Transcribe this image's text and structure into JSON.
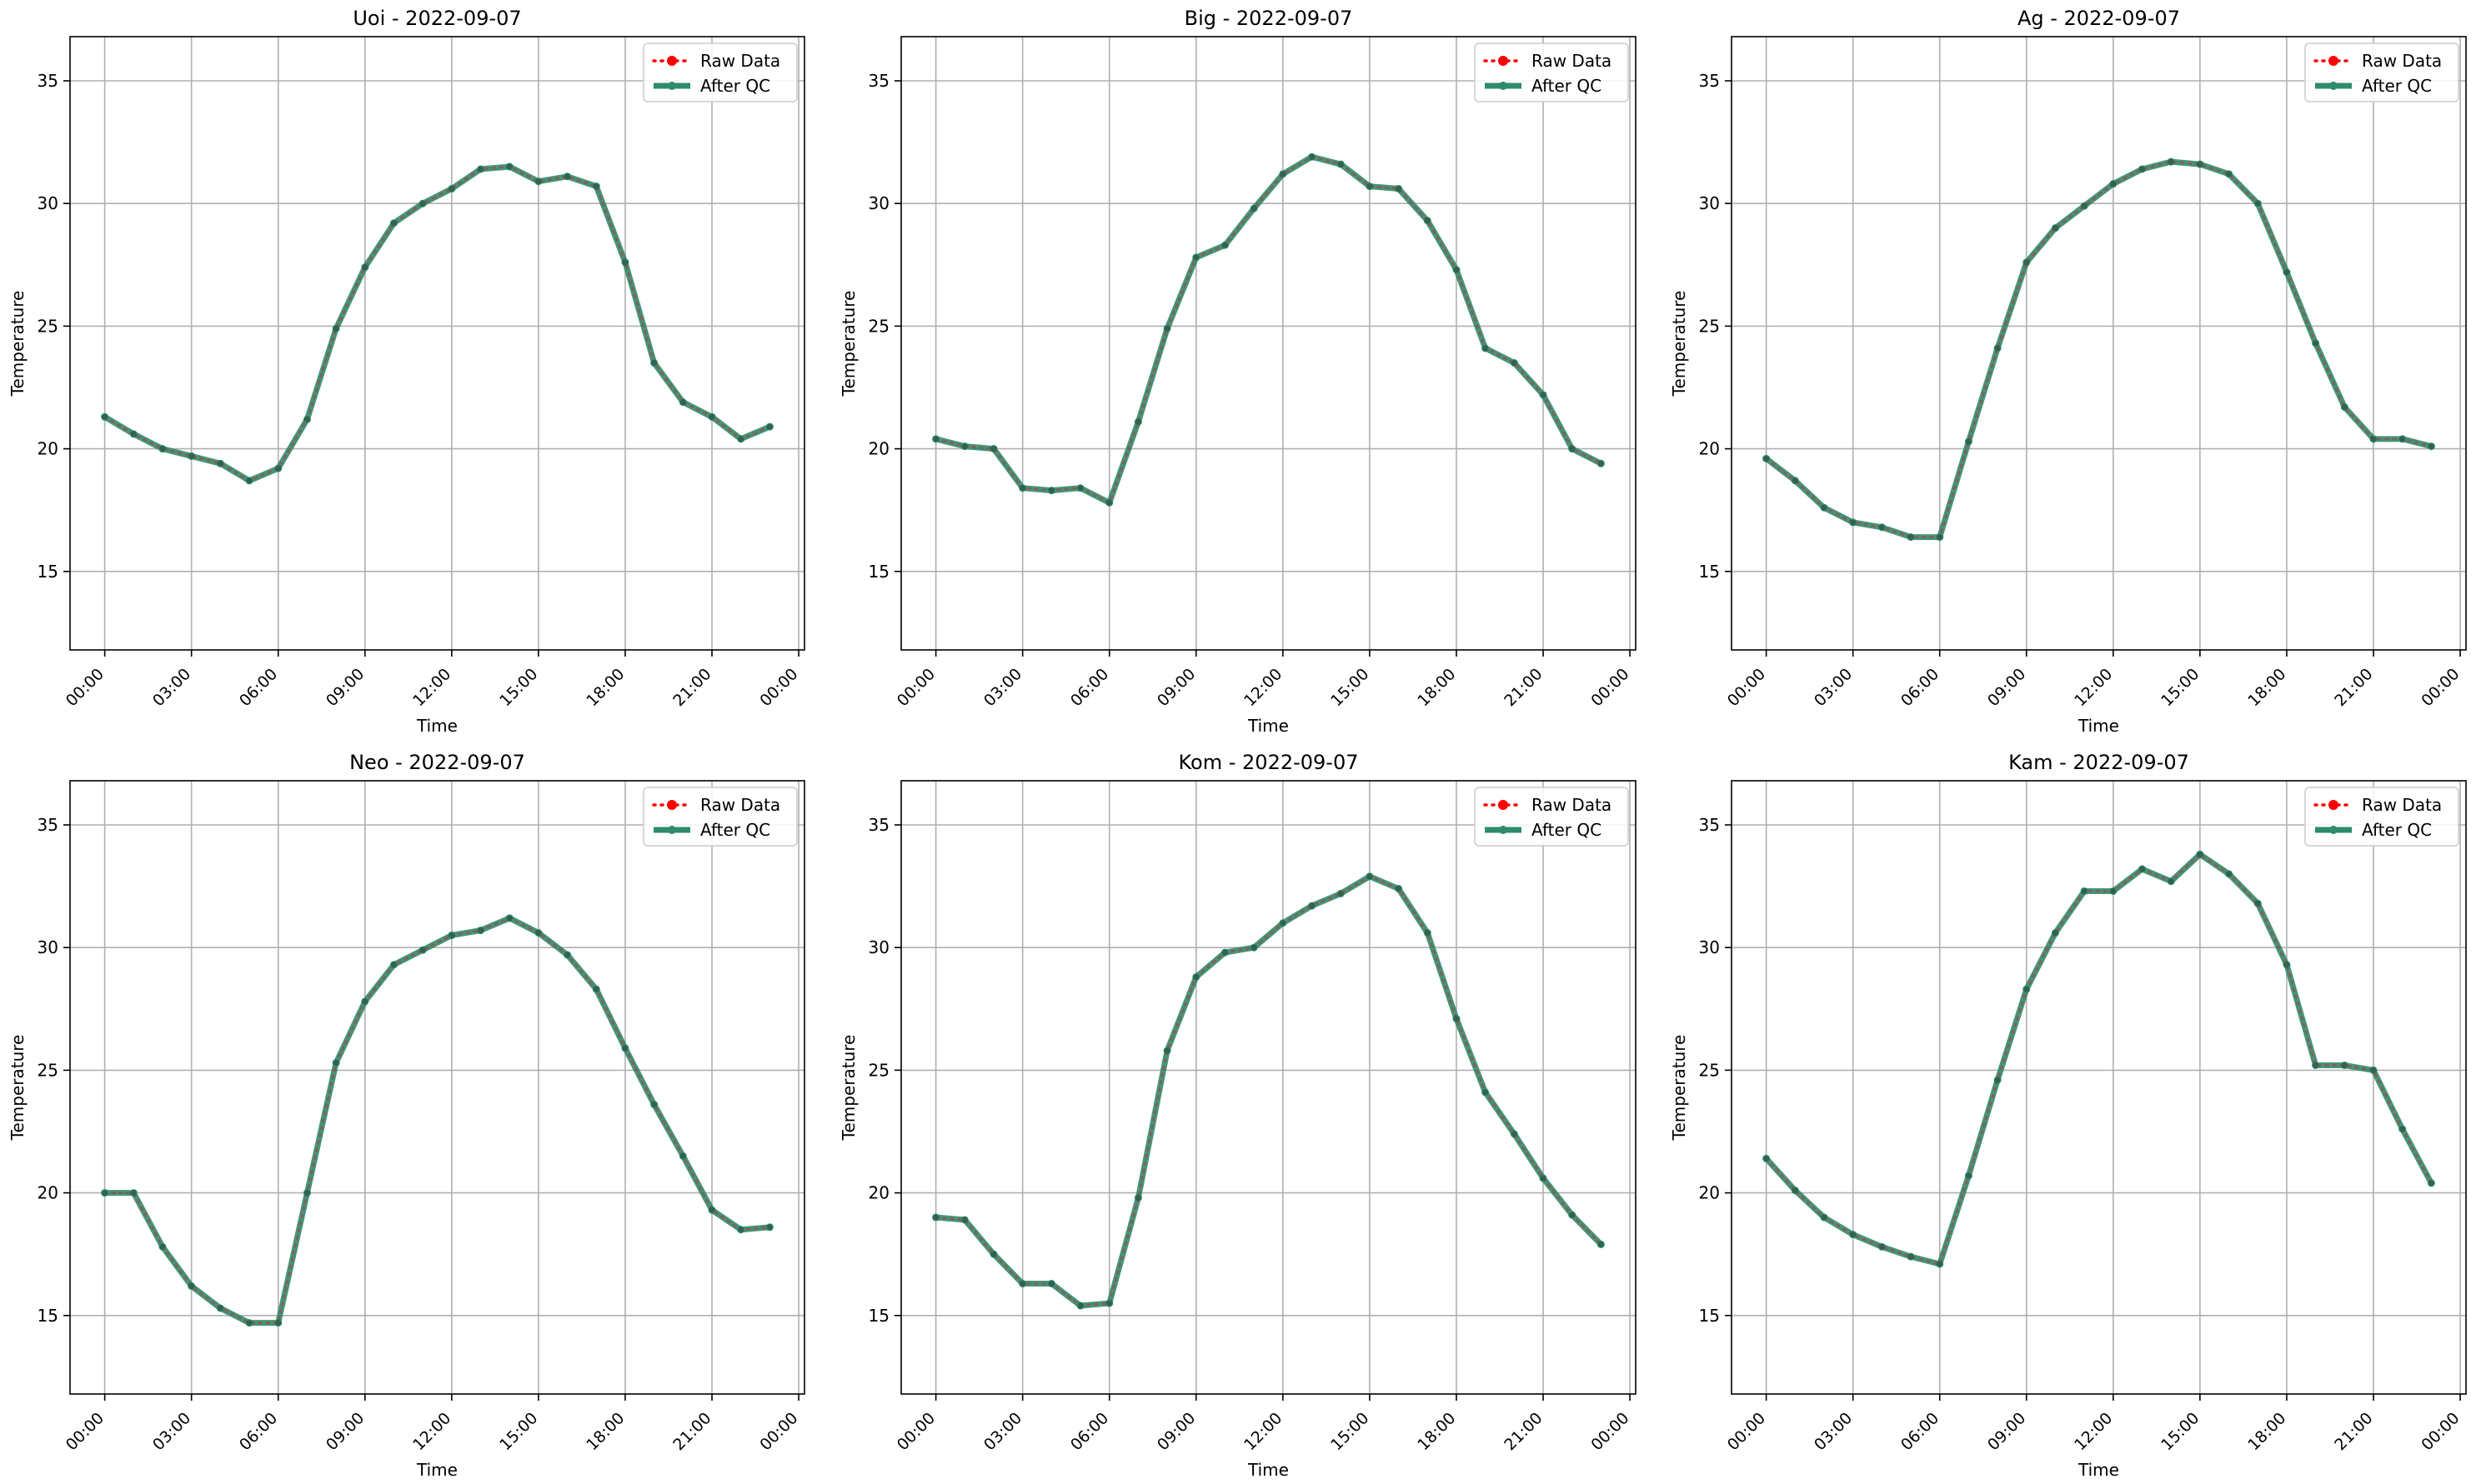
{
  "legend": {
    "raw_label": "Raw Data",
    "qc_label": "After QC",
    "placement": "upper right"
  },
  "colors": {
    "raw": "#ff0000",
    "qc": "#2e8b6e",
    "grid": "#b0b0b0",
    "axis": "#000000"
  },
  "axes": {
    "x_tick_labels": [
      "00:00",
      "03:00",
      "06:00",
      "09:00",
      "12:00",
      "15:00",
      "18:00",
      "21:00",
      "00:00"
    ],
    "y_ticks": [
      15,
      20,
      25,
      30,
      35
    ]
  },
  "chart_data": [
    {
      "type": "line",
      "title": "Uoi - 2022-09-07",
      "xlabel": "Time",
      "ylabel": "Temperature",
      "xlim": [
        "2022-09-06 22:48",
        "2022-09-08 00:12"
      ],
      "ylim": [
        11.8,
        36.8
      ],
      "grid": true,
      "x": [
        "00:00",
        "01:00",
        "02:00",
        "03:00",
        "04:00",
        "05:00",
        "06:00",
        "07:00",
        "08:00",
        "09:00",
        "10:00",
        "11:00",
        "12:00",
        "13:00",
        "14:00",
        "15:00",
        "16:00",
        "17:00",
        "18:00",
        "19:00",
        "20:00",
        "21:00",
        "22:00",
        "23:00"
      ],
      "series": [
        {
          "name": "Raw Data",
          "values": [
            21.3,
            20.6,
            20.0,
            19.7,
            19.4,
            18.7,
            19.2,
            21.2,
            24.9,
            27.4,
            29.2,
            30.0,
            30.6,
            31.4,
            31.5,
            30.9,
            31.1,
            30.7,
            27.6,
            23.5,
            21.9,
            21.3,
            20.4,
            20.9
          ]
        },
        {
          "name": "After QC",
          "values": [
            21.3,
            20.6,
            20.0,
            19.7,
            19.4,
            18.7,
            19.2,
            21.2,
            24.9,
            27.4,
            29.2,
            30.0,
            30.6,
            31.4,
            31.5,
            30.9,
            31.1,
            30.7,
            27.6,
            23.5,
            21.9,
            21.3,
            20.4,
            20.9
          ]
        }
      ]
    },
    {
      "type": "line",
      "title": "Big - 2022-09-07",
      "xlabel": "Time",
      "ylabel": "Temperature",
      "xlim": [
        "2022-09-06 22:48",
        "2022-09-08 00:12"
      ],
      "ylim": [
        11.8,
        36.8
      ],
      "grid": true,
      "x": [
        "00:00",
        "01:00",
        "02:00",
        "03:00",
        "04:00",
        "05:00",
        "06:00",
        "07:00",
        "08:00",
        "09:00",
        "10:00",
        "11:00",
        "12:00",
        "13:00",
        "14:00",
        "15:00",
        "16:00",
        "17:00",
        "18:00",
        "19:00",
        "20:00",
        "21:00",
        "22:00",
        "23:00"
      ],
      "series": [
        {
          "name": "Raw Data",
          "values": [
            20.4,
            20.1,
            20.0,
            18.4,
            18.3,
            18.4,
            17.8,
            21.1,
            24.9,
            27.8,
            28.3,
            29.8,
            31.2,
            31.9,
            31.6,
            30.7,
            30.6,
            29.3,
            27.3,
            24.1,
            23.5,
            22.2,
            20.0,
            19.4
          ]
        },
        {
          "name": "After QC",
          "values": [
            20.4,
            20.1,
            20.0,
            18.4,
            18.3,
            18.4,
            17.8,
            21.1,
            24.9,
            27.8,
            28.3,
            29.8,
            31.2,
            31.9,
            31.6,
            30.7,
            30.6,
            29.3,
            27.3,
            24.1,
            23.5,
            22.2,
            20.0,
            19.4
          ]
        }
      ]
    },
    {
      "type": "line",
      "title": "Ag - 2022-09-07",
      "xlabel": "Time",
      "ylabel": "Temperature",
      "xlim": [
        "2022-09-06 22:48",
        "2022-09-08 00:12"
      ],
      "ylim": [
        11.8,
        36.8
      ],
      "grid": true,
      "x": [
        "00:00",
        "01:00",
        "02:00",
        "03:00",
        "04:00",
        "05:00",
        "06:00",
        "07:00",
        "08:00",
        "09:00",
        "10:00",
        "11:00",
        "12:00",
        "13:00",
        "14:00",
        "15:00",
        "16:00",
        "17:00",
        "18:00",
        "19:00",
        "20:00",
        "21:00",
        "22:00",
        "23:00"
      ],
      "series": [
        {
          "name": "Raw Data",
          "values": [
            19.6,
            18.7,
            17.6,
            17.0,
            16.8,
            16.4,
            16.4,
            20.3,
            24.1,
            27.6,
            29.0,
            29.9,
            30.8,
            31.4,
            31.7,
            31.6,
            31.2,
            30.0,
            27.2,
            24.3,
            21.7,
            20.4,
            20.4,
            20.1
          ]
        },
        {
          "name": "After QC",
          "values": [
            19.6,
            18.7,
            17.6,
            17.0,
            16.8,
            16.4,
            16.4,
            20.3,
            24.1,
            27.6,
            29.0,
            29.9,
            30.8,
            31.4,
            31.7,
            31.6,
            31.2,
            30.0,
            27.2,
            24.3,
            21.7,
            20.4,
            20.4,
            20.1
          ]
        }
      ]
    },
    {
      "type": "line",
      "title": "Neo - 2022-09-07",
      "xlabel": "Time",
      "ylabel": "Temperature",
      "xlim": [
        "2022-09-06 22:48",
        "2022-09-08 00:12"
      ],
      "ylim": [
        11.8,
        36.8
      ],
      "grid": true,
      "x": [
        "00:00",
        "01:00",
        "02:00",
        "03:00",
        "04:00",
        "05:00",
        "06:00",
        "07:00",
        "08:00",
        "09:00",
        "10:00",
        "11:00",
        "12:00",
        "13:00",
        "14:00",
        "15:00",
        "16:00",
        "17:00",
        "18:00",
        "19:00",
        "20:00",
        "21:00",
        "22:00",
        "23:00"
      ],
      "series": [
        {
          "name": "Raw Data",
          "values": [
            20.0,
            20.0,
            17.8,
            16.2,
            15.3,
            14.7,
            14.7,
            20.0,
            25.3,
            27.8,
            29.3,
            29.9,
            30.5,
            30.7,
            31.2,
            30.6,
            29.7,
            28.3,
            25.9,
            23.6,
            21.5,
            19.3,
            18.5,
            18.6
          ]
        },
        {
          "name": "After QC",
          "values": [
            20.0,
            20.0,
            17.8,
            16.2,
            15.3,
            14.7,
            14.7,
            20.0,
            25.3,
            27.8,
            29.3,
            29.9,
            30.5,
            30.7,
            31.2,
            30.6,
            29.7,
            28.3,
            25.9,
            23.6,
            21.5,
            19.3,
            18.5,
            18.6
          ]
        }
      ]
    },
    {
      "type": "line",
      "title": "Kom - 2022-09-07",
      "xlabel": "Time",
      "ylabel": "Temperature",
      "xlim": [
        "2022-09-06 22:48",
        "2022-09-08 00:12"
      ],
      "ylim": [
        11.8,
        36.8
      ],
      "grid": true,
      "x": [
        "00:00",
        "01:00",
        "02:00",
        "03:00",
        "04:00",
        "05:00",
        "06:00",
        "07:00",
        "08:00",
        "09:00",
        "10:00",
        "11:00",
        "12:00",
        "13:00",
        "14:00",
        "15:00",
        "16:00",
        "17:00",
        "18:00",
        "19:00",
        "20:00",
        "21:00",
        "22:00",
        "23:00"
      ],
      "series": [
        {
          "name": "Raw Data",
          "values": [
            19.0,
            18.9,
            17.5,
            16.3,
            16.3,
            15.4,
            15.5,
            19.8,
            25.8,
            28.8,
            29.8,
            30.0,
            31.0,
            31.7,
            32.2,
            32.9,
            32.4,
            30.6,
            27.1,
            24.1,
            22.4,
            20.6,
            19.1,
            17.9
          ]
        },
        {
          "name": "After QC",
          "values": [
            19.0,
            18.9,
            17.5,
            16.3,
            16.3,
            15.4,
            15.5,
            19.8,
            25.8,
            28.8,
            29.8,
            30.0,
            31.0,
            31.7,
            32.2,
            32.9,
            32.4,
            30.6,
            27.1,
            24.1,
            22.4,
            20.6,
            19.1,
            17.9
          ]
        }
      ]
    },
    {
      "type": "line",
      "title": "Kam - 2022-09-07",
      "xlabel": "Time",
      "ylabel": "Temperature",
      "xlim": [
        "2022-09-06 22:48",
        "2022-09-08 00:12"
      ],
      "ylim": [
        11.8,
        36.8
      ],
      "grid": true,
      "x": [
        "00:00",
        "01:00",
        "02:00",
        "03:00",
        "04:00",
        "05:00",
        "06:00",
        "07:00",
        "08:00",
        "09:00",
        "10:00",
        "11:00",
        "12:00",
        "13:00",
        "14:00",
        "15:00",
        "16:00",
        "17:00",
        "18:00",
        "19:00",
        "20:00",
        "21:00",
        "22:00",
        "23:00"
      ],
      "series": [
        {
          "name": "Raw Data",
          "values": [
            21.4,
            20.1,
            19.0,
            18.3,
            17.8,
            17.4,
            17.1,
            20.7,
            24.6,
            28.3,
            30.6,
            32.3,
            32.3,
            33.2,
            32.7,
            33.8,
            33.0,
            31.8,
            29.3,
            25.2,
            25.2,
            25.0,
            22.6,
            20.4
          ]
        },
        {
          "name": "After QC",
          "values": [
            21.4,
            20.1,
            19.0,
            18.3,
            17.8,
            17.4,
            17.1,
            20.7,
            24.6,
            28.3,
            30.6,
            32.3,
            32.3,
            33.2,
            32.7,
            33.8,
            33.0,
            31.8,
            29.3,
            25.2,
            25.2,
            25.0,
            22.6,
            20.4
          ]
        }
      ]
    }
  ]
}
